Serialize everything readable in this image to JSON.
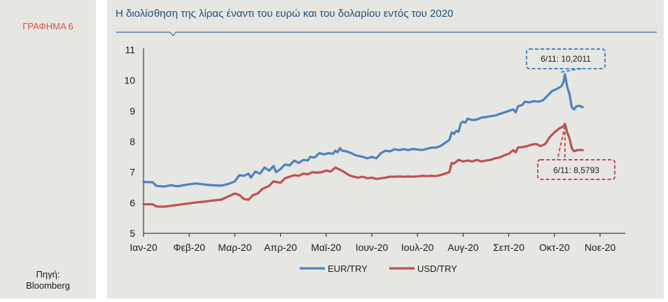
{
  "figure_label": "ΓΡΑΦΗΜΑ 6",
  "source": {
    "line1": "Πηγή:",
    "line2": "Bloomberg"
  },
  "chart_data": {
    "type": "line",
    "title": "Η  διολίσθηση της λίρας έναντι του ευρώ και του δολαρίου εντός του 2020",
    "xlabel": "",
    "ylabel": "",
    "ylim": [
      5,
      11
    ],
    "yticks": [
      "5",
      "6",
      "7",
      "8",
      "9",
      "10",
      "11"
    ],
    "x_tick_labels": [
      "Ιαν-20",
      "Φεβ-20",
      "Μαρ-20",
      "Απρ-20",
      "Μαϊ-20",
      "Ιουν-20",
      "Ιουλ-20",
      "Αυγ-20",
      "Σεπ-20",
      "Οκτ-20",
      "Νοε-20"
    ],
    "x_range_months": [
      0,
      10.73
    ],
    "grid": false,
    "legend_position": "bottom-center",
    "series": [
      {
        "name": "EUR/TRY",
        "color": "#4f81bd",
        "points": [
          [
            0.0,
            6.68
          ],
          [
            0.2,
            6.67
          ],
          [
            0.28,
            6.55
          ],
          [
            0.45,
            6.53
          ],
          [
            0.6,
            6.57
          ],
          [
            0.75,
            6.54
          ],
          [
            0.9,
            6.58
          ],
          [
            1.0,
            6.6
          ],
          [
            1.15,
            6.63
          ],
          [
            1.3,
            6.6
          ],
          [
            1.5,
            6.57
          ],
          [
            1.7,
            6.56
          ],
          [
            1.85,
            6.61
          ],
          [
            2.0,
            6.7
          ],
          [
            2.1,
            6.9
          ],
          [
            2.2,
            6.88
          ],
          [
            2.3,
            6.95
          ],
          [
            2.35,
            6.82
          ],
          [
            2.45,
            7.02
          ],
          [
            2.55,
            6.95
          ],
          [
            2.65,
            7.15
          ],
          [
            2.75,
            7.05
          ],
          [
            2.85,
            7.2
          ],
          [
            2.9,
            7.0
          ],
          [
            3.0,
            7.1
          ],
          [
            3.1,
            7.25
          ],
          [
            3.2,
            7.22
          ],
          [
            3.3,
            7.38
          ],
          [
            3.4,
            7.3
          ],
          [
            3.5,
            7.4
          ],
          [
            3.6,
            7.38
          ],
          [
            3.65,
            7.5
          ],
          [
            3.75,
            7.48
          ],
          [
            3.85,
            7.62
          ],
          [
            3.95,
            7.58
          ],
          [
            4.05,
            7.62
          ],
          [
            4.15,
            7.6
          ],
          [
            4.2,
            7.7
          ],
          [
            4.25,
            7.65
          ],
          [
            4.3,
            7.78
          ],
          [
            4.35,
            7.7
          ],
          [
            4.45,
            7.68
          ],
          [
            4.55,
            7.62
          ],
          [
            4.65,
            7.55
          ],
          [
            4.8,
            7.5
          ],
          [
            4.9,
            7.45
          ],
          [
            5.0,
            7.5
          ],
          [
            5.1,
            7.45
          ],
          [
            5.2,
            7.62
          ],
          [
            5.3,
            7.7
          ],
          [
            5.4,
            7.68
          ],
          [
            5.5,
            7.75
          ],
          [
            5.6,
            7.72
          ],
          [
            5.7,
            7.75
          ],
          [
            5.8,
            7.72
          ],
          [
            5.9,
            7.76
          ],
          [
            6.0,
            7.74
          ],
          [
            6.1,
            7.72
          ],
          [
            6.2,
            7.76
          ],
          [
            6.3,
            7.8
          ],
          [
            6.4,
            7.8
          ],
          [
            6.5,
            7.85
          ],
          [
            6.6,
            7.95
          ],
          [
            6.7,
            8.05
          ],
          [
            6.75,
            8.3
          ],
          [
            6.8,
            8.25
          ],
          [
            6.85,
            8.35
          ],
          [
            6.9,
            8.32
          ],
          [
            6.95,
            8.6
          ],
          [
            7.0,
            8.65
          ],
          [
            7.05,
            8.62
          ],
          [
            7.1,
            8.75
          ],
          [
            7.2,
            8.7
          ],
          [
            7.3,
            8.72
          ],
          [
            7.4,
            8.78
          ],
          [
            7.5,
            8.8
          ],
          [
            7.6,
            8.83
          ],
          [
            7.7,
            8.85
          ],
          [
            7.8,
            8.9
          ],
          [
            7.9,
            8.95
          ],
          [
            8.0,
            9.0
          ],
          [
            8.1,
            9.05
          ],
          [
            8.15,
            8.95
          ],
          [
            8.2,
            9.15
          ],
          [
            8.3,
            9.2
          ],
          [
            8.35,
            9.3
          ],
          [
            8.45,
            9.28
          ],
          [
            8.55,
            9.32
          ],
          [
            8.65,
            9.3
          ],
          [
            8.75,
            9.35
          ],
          [
            8.85,
            9.5
          ],
          [
            8.95,
            9.65
          ],
          [
            9.05,
            9.72
          ],
          [
            9.15,
            9.8
          ],
          [
            9.2,
            9.95
          ],
          [
            9.23,
            10.2
          ],
          [
            9.28,
            9.78
          ],
          [
            9.33,
            9.55
          ],
          [
            9.38,
            9.12
          ],
          [
            9.43,
            9.05
          ],
          [
            9.48,
            9.15
          ],
          [
            9.55,
            9.17
          ],
          [
            9.62,
            9.12
          ]
        ]
      },
      {
        "name": "USD/TRY",
        "color": "#c0504d",
        "points": [
          [
            0.0,
            5.95
          ],
          [
            0.2,
            5.95
          ],
          [
            0.28,
            5.88
          ],
          [
            0.45,
            5.87
          ],
          [
            0.6,
            5.9
          ],
          [
            0.75,
            5.93
          ],
          [
            0.9,
            5.96
          ],
          [
            1.0,
            5.98
          ],
          [
            1.15,
            6.01
          ],
          [
            1.3,
            6.03
          ],
          [
            1.5,
            6.07
          ],
          [
            1.7,
            6.1
          ],
          [
            1.85,
            6.2
          ],
          [
            2.0,
            6.3
          ],
          [
            2.1,
            6.25
          ],
          [
            2.2,
            6.12
          ],
          [
            2.3,
            6.1
          ],
          [
            2.4,
            6.25
          ],
          [
            2.5,
            6.3
          ],
          [
            2.6,
            6.45
          ],
          [
            2.75,
            6.55
          ],
          [
            2.85,
            6.7
          ],
          [
            3.0,
            6.65
          ],
          [
            3.1,
            6.8
          ],
          [
            3.2,
            6.85
          ],
          [
            3.3,
            6.9
          ],
          [
            3.4,
            6.88
          ],
          [
            3.5,
            6.95
          ],
          [
            3.6,
            6.93
          ],
          [
            3.7,
            7.0
          ],
          [
            3.8,
            6.98
          ],
          [
            3.9,
            7.0
          ],
          [
            4.0,
            7.05
          ],
          [
            4.1,
            7.02
          ],
          [
            4.2,
            7.15
          ],
          [
            4.3,
            7.08
          ],
          [
            4.4,
            7.0
          ],
          [
            4.5,
            6.9
          ],
          [
            4.6,
            6.85
          ],
          [
            4.7,
            6.82
          ],
          [
            4.8,
            6.85
          ],
          [
            4.9,
            6.8
          ],
          [
            5.0,
            6.82
          ],
          [
            5.1,
            6.78
          ],
          [
            5.2,
            6.8
          ],
          [
            5.3,
            6.82
          ],
          [
            5.4,
            6.85
          ],
          [
            5.5,
            6.85
          ],
          [
            5.6,
            6.86
          ],
          [
            5.7,
            6.85
          ],
          [
            5.8,
            6.86
          ],
          [
            5.9,
            6.85
          ],
          [
            6.0,
            6.86
          ],
          [
            6.1,
            6.88
          ],
          [
            6.2,
            6.87
          ],
          [
            6.3,
            6.88
          ],
          [
            6.4,
            6.87
          ],
          [
            6.5,
            6.9
          ],
          [
            6.6,
            6.95
          ],
          [
            6.7,
            7.0
          ],
          [
            6.75,
            7.3
          ],
          [
            6.8,
            7.28
          ],
          [
            6.9,
            7.4
          ],
          [
            7.0,
            7.35
          ],
          [
            7.1,
            7.38
          ],
          [
            7.2,
            7.35
          ],
          [
            7.3,
            7.4
          ],
          [
            7.4,
            7.35
          ],
          [
            7.5,
            7.38
          ],
          [
            7.6,
            7.4
          ],
          [
            7.7,
            7.45
          ],
          [
            7.8,
            7.48
          ],
          [
            7.9,
            7.55
          ],
          [
            8.0,
            7.6
          ],
          [
            8.1,
            7.72
          ],
          [
            8.15,
            7.65
          ],
          [
            8.2,
            7.8
          ],
          [
            8.3,
            7.82
          ],
          [
            8.4,
            7.85
          ],
          [
            8.5,
            7.9
          ],
          [
            8.6,
            7.92
          ],
          [
            8.7,
            7.85
          ],
          [
            8.8,
            7.92
          ],
          [
            8.9,
            8.15
          ],
          [
            9.0,
            8.3
          ],
          [
            9.1,
            8.42
          ],
          [
            9.2,
            8.5
          ],
          [
            9.23,
            8.58
          ],
          [
            9.28,
            8.3
          ],
          [
            9.33,
            8.1
          ],
          [
            9.38,
            7.78
          ],
          [
            9.43,
            7.68
          ],
          [
            9.5,
            7.72
          ],
          [
            9.62,
            7.72
          ]
        ]
      }
    ],
    "annotations": [
      {
        "text": "6/11: 10,2011",
        "series": "EUR/TRY",
        "point": [
          9.23,
          10.2011
        ],
        "placement": "above-left"
      },
      {
        "text": "6/11: 8,5793",
        "series": "USD/TRY",
        "point": [
          9.23,
          8.5793
        ],
        "placement": "below"
      }
    ]
  }
}
